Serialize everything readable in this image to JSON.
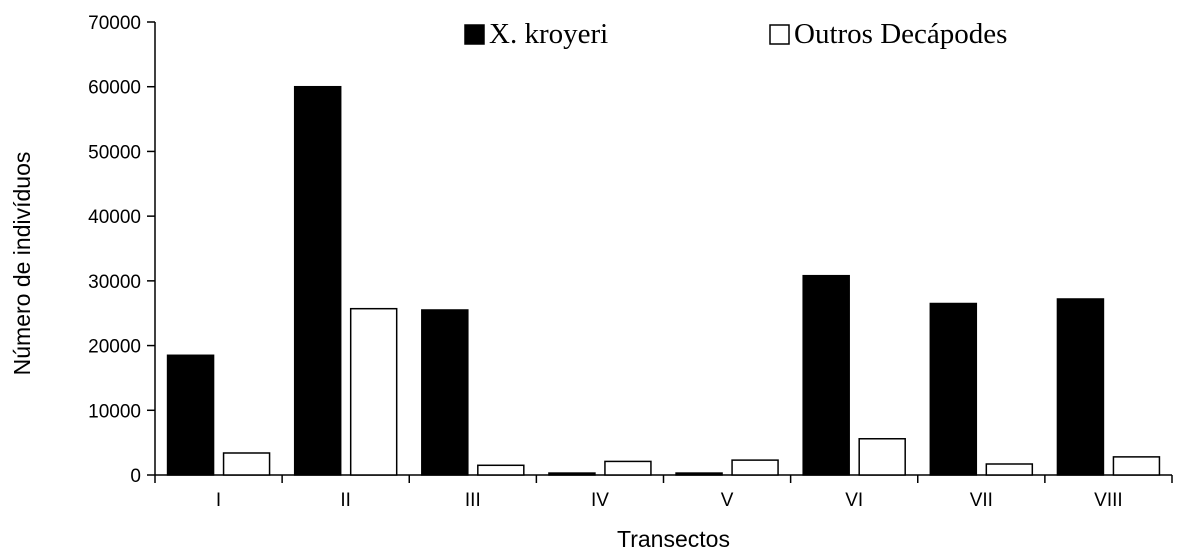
{
  "chart_data": {
    "type": "bar",
    "title": "",
    "xlabel": "Transectos",
    "ylabel": "Número de indivíduos",
    "categories": [
      "I",
      "II",
      "III",
      "IV",
      "V",
      "VI",
      "VII",
      "VIII"
    ],
    "series": [
      {
        "name": "X. kroyeri",
        "values": [
          18500,
          60000,
          25500,
          300,
          300,
          30800,
          26500,
          27200
        ],
        "color": "#000000"
      },
      {
        "name": "Outros Decápodes",
        "values": [
          3400,
          25700,
          1500,
          2100,
          2300,
          5600,
          1700,
          2800
        ],
        "color": "#ffffff"
      }
    ],
    "ylim": [
      0,
      70000
    ],
    "yticks": [
      0,
      10000,
      20000,
      30000,
      40000,
      50000,
      60000,
      70000
    ],
    "grid": false,
    "legend": "top-right"
  }
}
